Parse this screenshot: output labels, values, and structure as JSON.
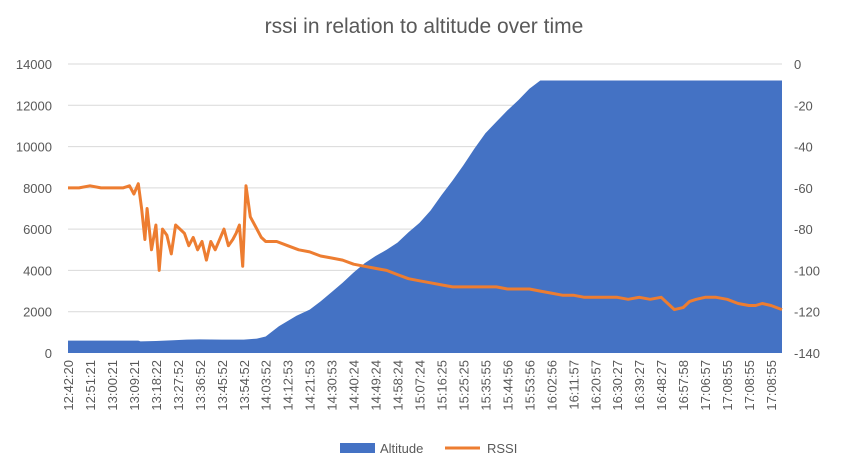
{
  "chart_data": {
    "type": "area",
    "title": "rssi in relation to altitude over time",
    "xlabel": "",
    "ylabel": "",
    "y2label": "",
    "x_tick_labels": [
      "12:42:20",
      "12:51:21",
      "13:00:21",
      "13:09:21",
      "13:18:22",
      "13:27:52",
      "13:36:52",
      "13:45:52",
      "13:54:52",
      "14:03:52",
      "14:12:53",
      "14:21:53",
      "14:30:53",
      "14:40:24",
      "14:49:24",
      "14:58:24",
      "15:07:24",
      "15:16:25",
      "15:25:25",
      "15:35:55",
      "15:44:56",
      "15:53:56",
      "16:02:56",
      "16:11:57",
      "16:20:57",
      "16:30:27",
      "16:39:27",
      "16:48:27",
      "16:57:58",
      "17:06:57",
      "17:08:55",
      "17:08:55",
      "17:08:55"
    ],
    "y_left": {
      "min": 0,
      "max": 14000,
      "ticks": [
        0,
        2000,
        4000,
        6000,
        8000,
        10000,
        12000,
        14000
      ]
    },
    "y_right": {
      "min": -140,
      "max": 0,
      "ticks": [
        -140,
        -120,
        -100,
        -80,
        -60,
        -40,
        -20,
        0
      ]
    },
    "grid": true,
    "legend_position": "bottom",
    "series": [
      {
        "name": "Altitude",
        "kind": "area",
        "axis": "left",
        "color": "#4472C4",
        "x": [
          0,
          3.2,
          3.3,
          4,
          4.8,
          5.4,
          6,
          7,
          8,
          8.6,
          9,
          9.6,
          10,
          10.4,
          11,
          11.5,
          12,
          12.5,
          13,
          13.5,
          14,
          14.5,
          15,
          15.5,
          16,
          16.5,
          17,
          17.5,
          18,
          18.5,
          19,
          19.5,
          20,
          20.5,
          21,
          21.5,
          22,
          22.5,
          23,
          24,
          25,
          26,
          27,
          28,
          29,
          30,
          31,
          32,
          32.5
        ],
        "values": [
          600,
          600,
          560,
          580,
          620,
          650,
          660,
          650,
          650,
          700,
          800,
          1300,
          1550,
          1800,
          2100,
          2500,
          2950,
          3400,
          3900,
          4350,
          4700,
          5000,
          5350,
          5850,
          6300,
          6900,
          7650,
          8350,
          9100,
          9900,
          10650,
          11200,
          11750,
          12250,
          12800,
          13200,
          13200,
          13200,
          13200,
          13200,
          13200,
          13200,
          13200,
          13200,
          13200,
          13200,
          13200,
          13200,
          13200
        ]
      },
      {
        "name": "RSSI",
        "kind": "line",
        "axis": "right",
        "color": "#ED7D31",
        "x": [
          0,
          0.5,
          1,
          1.5,
          2,
          2.5,
          2.8,
          3,
          3.2,
          3.35,
          3.5,
          3.6,
          3.8,
          4,
          4.15,
          4.3,
          4.5,
          4.7,
          4.9,
          5.1,
          5.3,
          5.5,
          5.7,
          5.9,
          6.1,
          6.3,
          6.5,
          6.7,
          6.9,
          7.1,
          7.3,
          7.5,
          7.65,
          7.8,
          7.95,
          8.1,
          8.3,
          8.5,
          8.8,
          9,
          9.5,
          10,
          10.5,
          11,
          11.5,
          12,
          12.5,
          13,
          13.5,
          14,
          14.5,
          15,
          15.5,
          16,
          16.5,
          17,
          17.5,
          18,
          18.5,
          19,
          19.5,
          20,
          20.5,
          21,
          21.5,
          22,
          22.5,
          23,
          23.5,
          24,
          24.5,
          25,
          25.5,
          26,
          26.5,
          27,
          27.3,
          27.6,
          28,
          28.3,
          28.6,
          29,
          29.5,
          30,
          30.5,
          31,
          31.3,
          31.6,
          32,
          32.5
        ],
        "values": [
          -60,
          -60,
          -59,
          -60,
          -60,
          -60,
          -59,
          -63,
          -58,
          -70,
          -85,
          -70,
          -90,
          -78,
          -100,
          -80,
          -83,
          -92,
          -78,
          -80,
          -82,
          -88,
          -84,
          -90,
          -86,
          -95,
          -86,
          -90,
          -85,
          -80,
          -88,
          -85,
          -82,
          -78,
          -98,
          -59,
          -74,
          -78,
          -84,
          -86,
          -86,
          -88,
          -90,
          -91,
          -93,
          -94,
          -95,
          -97,
          -98,
          -99,
          -100,
          -102,
          -104,
          -105,
          -106,
          -107,
          -108,
          -108,
          -108,
          -108,
          -108,
          -109,
          -109,
          -109,
          -110,
          -111,
          -112,
          -112,
          -113,
          -113,
          -113,
          -113,
          -114,
          -113,
          -114,
          -113,
          -116,
          -119,
          -118,
          -115,
          -114,
          -113,
          -113,
          -114,
          -116,
          -117,
          -117,
          -116,
          -117,
          -119
        ]
      }
    ]
  }
}
